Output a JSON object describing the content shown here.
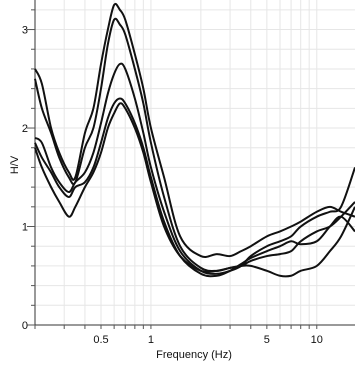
{
  "chart_data": {
    "type": "line",
    "title": "",
    "xlabel": "Frequency (Hz)",
    "ylabel": "H/V",
    "xscale": "log",
    "xlim": [
      0.2,
      17
    ],
    "ylim": [
      0,
      3.3
    ],
    "grid": true,
    "legend": "none",
    "x_ticks": [
      {
        "value": 0.5,
        "label": "0.5"
      },
      {
        "value": 1,
        "label": "1"
      },
      {
        "value": 5,
        "label": "5"
      },
      {
        "value": 10,
        "label": "10"
      }
    ],
    "y_ticks": [
      {
        "value": 0,
        "label": "0"
      },
      {
        "value": 1,
        "label": "1"
      },
      {
        "value": 2,
        "label": "2"
      },
      {
        "value": 3,
        "label": "3"
      }
    ],
    "line_color": "#111111",
    "grid_color": "#e6e6e6",
    "series": [
      {
        "x": [
          0.2,
          0.22,
          0.25,
          0.28,
          0.32,
          0.35,
          0.4,
          0.45,
          0.5,
          0.55,
          0.6,
          0.65,
          0.7,
          0.8,
          0.9,
          1.0,
          1.2,
          1.5,
          2.0,
          2.5,
          3.0,
          3.5,
          4.0,
          5.0,
          6.0,
          7.0,
          8.0,
          10.0,
          12.0,
          14.0,
          17.0
        ],
        "y": [
          2.6,
          2.45,
          2.0,
          1.75,
          1.55,
          1.5,
          1.95,
          2.2,
          2.65,
          3.0,
          3.25,
          3.2,
          3.1,
          2.75,
          2.4,
          2.0,
          1.5,
          0.9,
          0.7,
          0.72,
          0.7,
          0.75,
          0.8,
          0.9,
          0.95,
          1.0,
          1.05,
          1.15,
          1.2,
          1.15,
          1.1
        ]
      },
      {
        "x": [
          0.2,
          0.22,
          0.25,
          0.28,
          0.32,
          0.35,
          0.4,
          0.45,
          0.5,
          0.55,
          0.6,
          0.65,
          0.7,
          0.8,
          0.9,
          1.0,
          1.2,
          1.5,
          2.0,
          2.5,
          3.0,
          3.5,
          4.0,
          5.0,
          6.0,
          7.0,
          8.0,
          10.0,
          12.0,
          14.0,
          17.0
        ],
        "y": [
          2.5,
          2.2,
          1.95,
          1.7,
          1.5,
          1.45,
          1.8,
          2.0,
          2.4,
          2.85,
          3.1,
          3.05,
          2.95,
          2.6,
          2.25,
          1.85,
          1.3,
          0.8,
          0.58,
          0.55,
          0.58,
          0.6,
          0.65,
          0.7,
          0.72,
          0.75,
          0.85,
          0.95,
          1.0,
          1.1,
          1.25
        ]
      },
      {
        "x": [
          0.2,
          0.22,
          0.25,
          0.28,
          0.32,
          0.35,
          0.4,
          0.45,
          0.5,
          0.55,
          0.6,
          0.65,
          0.7,
          0.8,
          0.9,
          1.0,
          1.2,
          1.5,
          2.0,
          2.5,
          3.0,
          3.5,
          4.0,
          5.0,
          6.0,
          7.0,
          8.0,
          10.0,
          12.0,
          14.0,
          17.0
        ],
        "y": [
          1.9,
          1.85,
          1.6,
          1.45,
          1.35,
          1.45,
          1.55,
          1.75,
          2.05,
          2.35,
          2.55,
          2.65,
          2.6,
          2.3,
          1.95,
          1.6,
          1.15,
          0.75,
          0.55,
          0.52,
          0.55,
          0.6,
          0.7,
          0.8,
          0.85,
          0.9,
          1.0,
          1.1,
          1.15,
          1.2,
          1.6
        ]
      },
      {
        "x": [
          0.2,
          0.22,
          0.25,
          0.28,
          0.32,
          0.35,
          0.4,
          0.45,
          0.5,
          0.55,
          0.6,
          0.65,
          0.7,
          0.8,
          0.9,
          1.0,
          1.2,
          1.5,
          2.0,
          2.5,
          3.0,
          3.5,
          4.0,
          5.0,
          6.0,
          7.0,
          8.0,
          10.0,
          12.0,
          14.0,
          17.0
        ],
        "y": [
          1.85,
          1.7,
          1.55,
          1.4,
          1.3,
          1.4,
          1.45,
          1.6,
          1.85,
          2.1,
          2.25,
          2.3,
          2.25,
          2.05,
          1.8,
          1.5,
          1.05,
          0.7,
          0.52,
          0.5,
          0.55,
          0.62,
          0.68,
          0.75,
          0.8,
          0.85,
          0.82,
          0.85,
          1.0,
          1.1,
          0.95
        ]
      },
      {
        "x": [
          0.2,
          0.22,
          0.25,
          0.28,
          0.32,
          0.35,
          0.4,
          0.45,
          0.5,
          0.55,
          0.6,
          0.65,
          0.7,
          0.8,
          0.9,
          1.0,
          1.2,
          1.5,
          2.0,
          2.5,
          3.0,
          3.5,
          4.0,
          5.0,
          6.0,
          7.0,
          8.0,
          10.0,
          12.0,
          14.0,
          17.0
        ],
        "y": [
          1.8,
          1.6,
          1.4,
          1.25,
          1.1,
          1.2,
          1.4,
          1.55,
          1.75,
          2.0,
          2.15,
          2.25,
          2.2,
          2.0,
          1.75,
          1.45,
          1.0,
          0.7,
          0.55,
          0.55,
          0.58,
          0.6,
          0.6,
          0.55,
          0.5,
          0.5,
          0.55,
          0.6,
          0.75,
          0.9,
          1.2
        ]
      }
    ]
  }
}
